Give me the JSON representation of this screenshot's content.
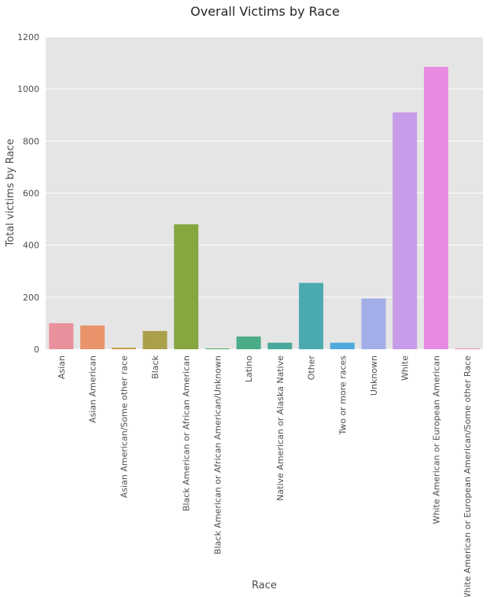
{
  "chart_data": {
    "type": "bar",
    "title": "Overall Victims by Race",
    "xlabel": "Race",
    "ylabel": "Total victims by Race",
    "ylim": [
      0,
      1200
    ],
    "yticks": [
      0,
      200,
      400,
      600,
      800,
      1000,
      1200
    ],
    "grid": true,
    "categories": [
      "Asian",
      "Asian American",
      "Asian American/Some other race",
      "Black",
      "Black American or African American",
      "Black American or African American/Unknown",
      "Latino",
      "Native American or Alaska Native",
      "Other",
      "Two or more races",
      "Unknown",
      "White",
      "White American or European American",
      "White American or European American/Some other Race"
    ],
    "values": [
      100,
      91,
      6,
      70,
      480,
      3,
      49,
      25,
      255,
      25,
      195,
      910,
      1085,
      3
    ],
    "colors": [
      "#e8909b",
      "#e8936a",
      "#c59d47",
      "#aba04a",
      "#86a640",
      "#4caf5b",
      "#4aac86",
      "#49a99b",
      "#4ba9b0",
      "#4eaade",
      "#a3aee9",
      "#c79ce8",
      "#e889e2",
      "#ea8dbb"
    ]
  }
}
